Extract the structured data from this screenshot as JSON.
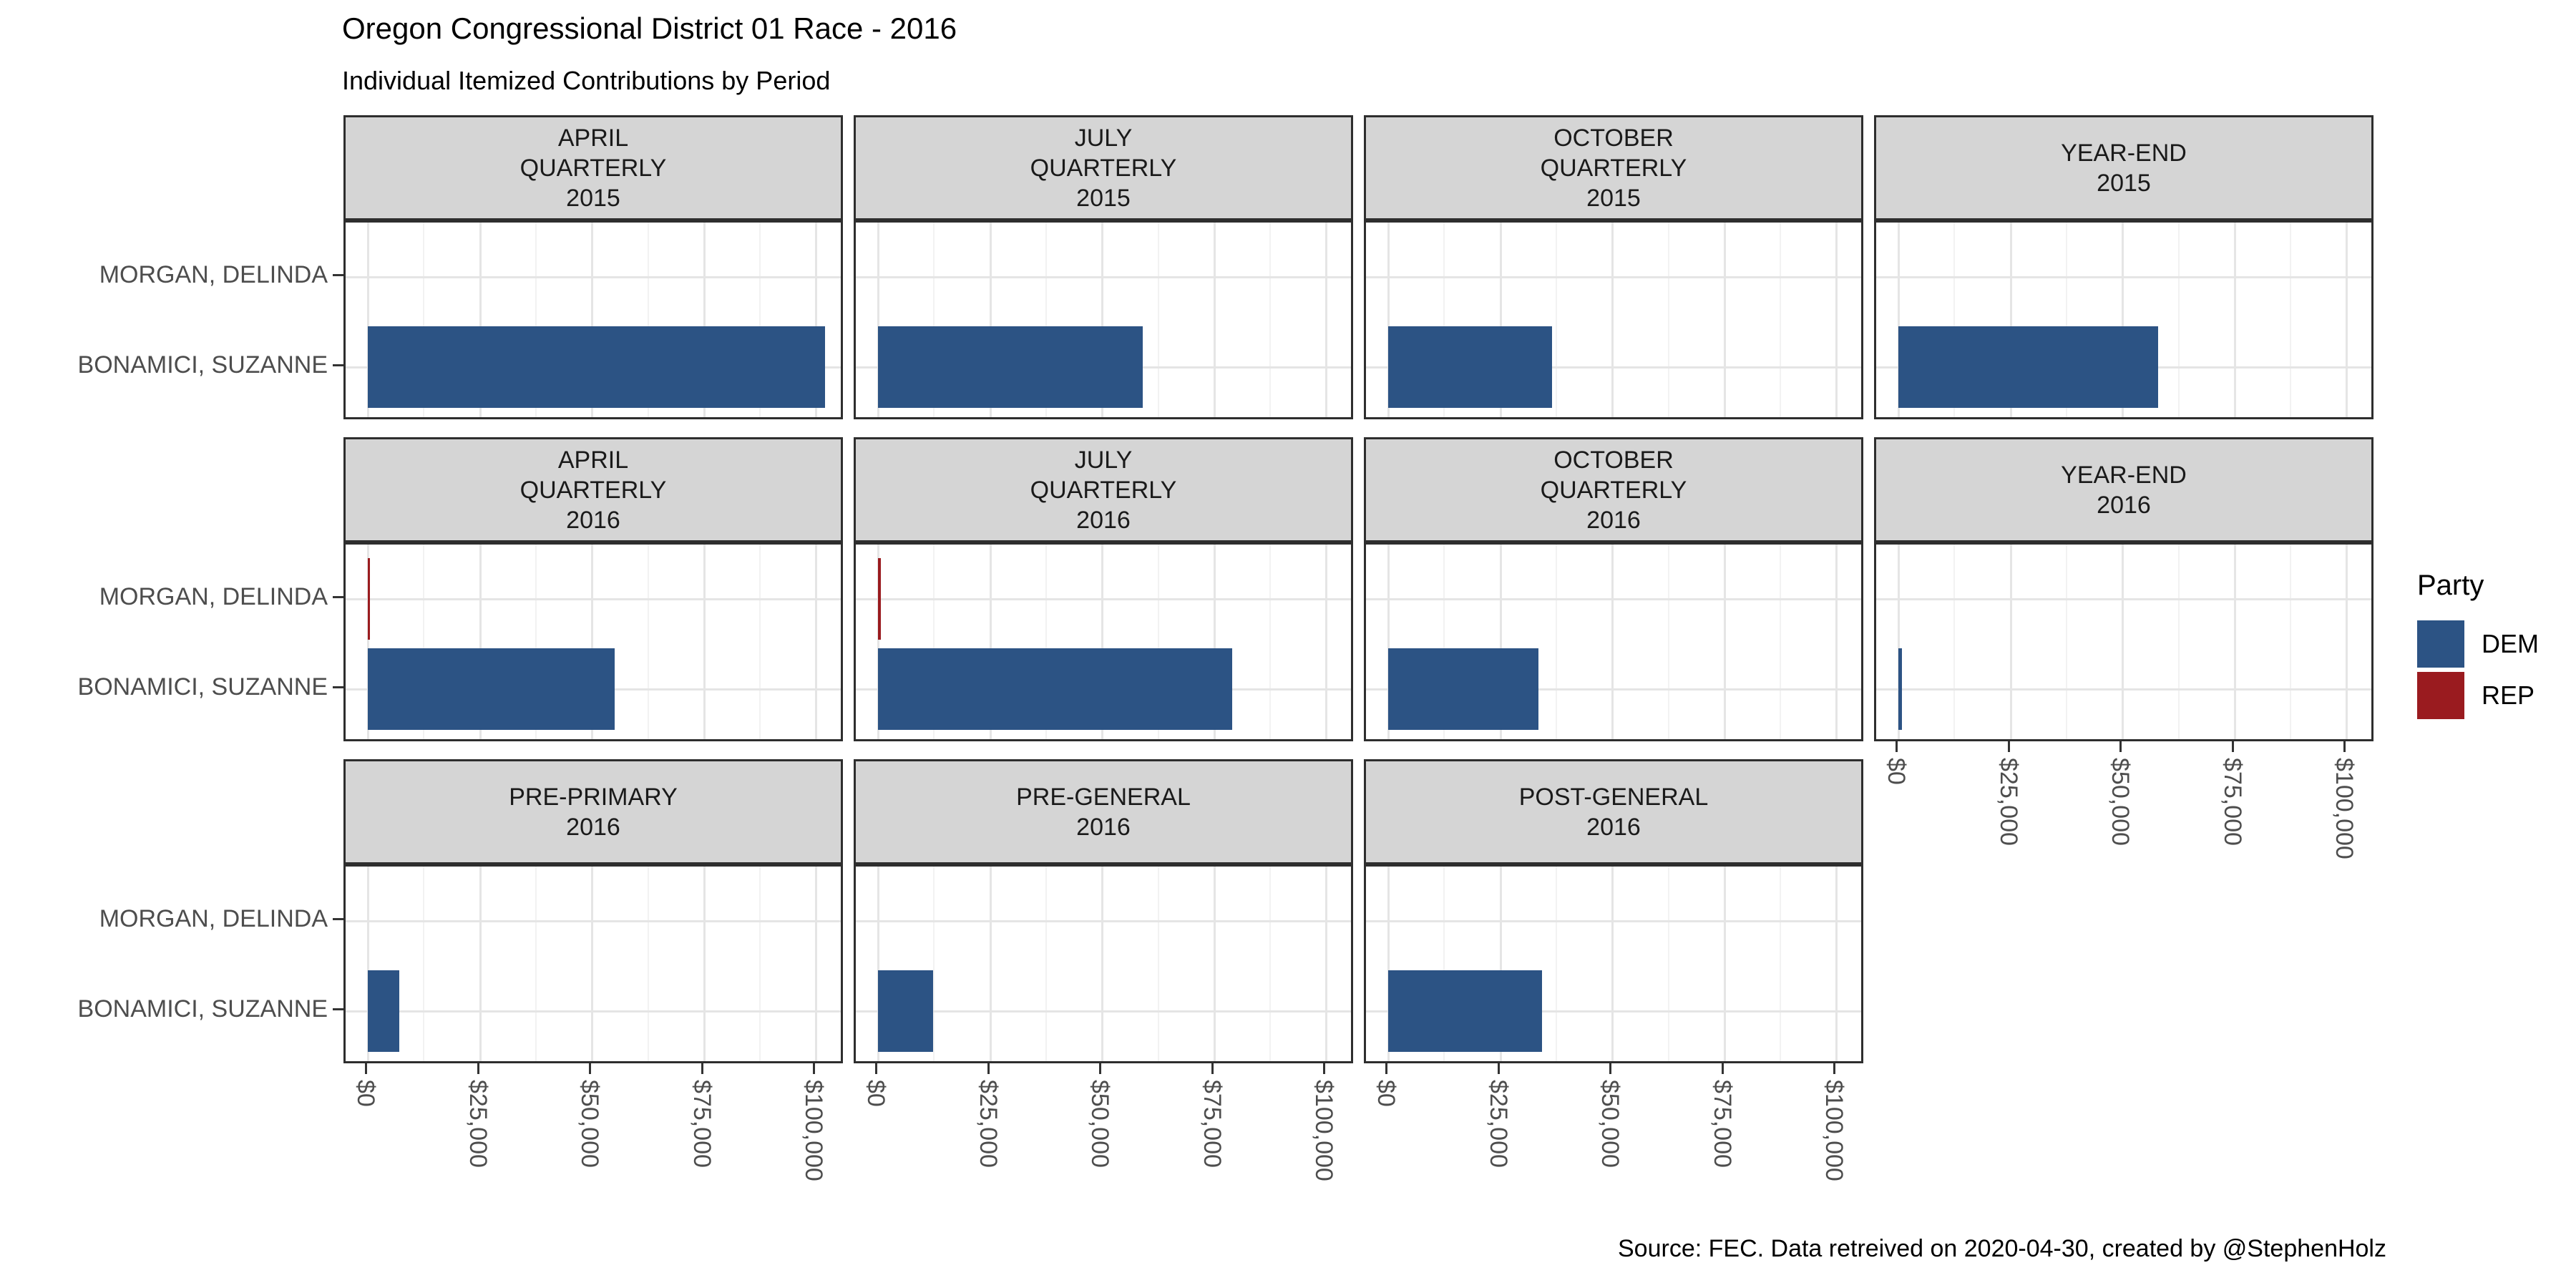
{
  "chart_data": {
    "type": "bar",
    "orientation": "horizontal",
    "title": "Oregon Congressional District 01 Race - 2016",
    "subtitle": "Individual Itemized Contributions by Period",
    "caption": "Source: FEC. Data retreived on 2020-04-30, created by @StephenHolz",
    "categories": [
      "MORGAN, DELINDA",
      "BONAMICI, SUZANNE"
    ],
    "x_axis": {
      "tick_labels": [
        "$0",
        "$25,000",
        "$50,000",
        "$75,000",
        "$100,000"
      ],
      "tick_values": [
        0,
        25000,
        50000,
        75000,
        100000
      ],
      "minor_step": 12500,
      "range_dollars": [
        0,
        100000
      ],
      "grid": "on"
    },
    "legend": {
      "title": "Party",
      "position": "right",
      "entries": [
        {
          "label": "DEM",
          "color": "#2C5384"
        },
        {
          "label": "REP",
          "color": "#9A1B1F"
        }
      ]
    },
    "party_colors": {
      "DEM": "#2C5384",
      "REP": "#9A1B1F"
    },
    "facets": [
      {
        "strip_lines": [
          "APRIL",
          "QUARTERLY",
          "2015"
        ],
        "row": 0,
        "col": 0,
        "axis_x": false,
        "bars": [
          {
            "candidate": "BONAMICI, SUZANNE",
            "party": "DEM",
            "value": 102000
          }
        ]
      },
      {
        "strip_lines": [
          "JULY",
          "QUARTERLY",
          "2015"
        ],
        "row": 0,
        "col": 1,
        "axis_x": false,
        "bars": [
          {
            "candidate": "BONAMICI, SUZANNE",
            "party": "DEM",
            "value": 59000
          }
        ]
      },
      {
        "strip_lines": [
          "OCTOBER",
          "QUARTERLY",
          "2015"
        ],
        "row": 0,
        "col": 2,
        "axis_x": false,
        "bars": [
          {
            "candidate": "BONAMICI, SUZANNE",
            "party": "DEM",
            "value": 36500
          }
        ]
      },
      {
        "strip_lines": [
          "YEAR-END",
          "2015"
        ],
        "row": 0,
        "col": 3,
        "axis_x": false,
        "bars": [
          {
            "candidate": "BONAMICI, SUZANNE",
            "party": "DEM",
            "value": 58000
          }
        ]
      },
      {
        "strip_lines": [
          "APRIL",
          "QUARTERLY",
          "2016"
        ],
        "row": 1,
        "col": 0,
        "axis_x": false,
        "bars": [
          {
            "candidate": "MORGAN, DELINDA",
            "party": "REP",
            "value": 400
          },
          {
            "candidate": "BONAMICI, SUZANNE",
            "party": "DEM",
            "value": 55000
          }
        ]
      },
      {
        "strip_lines": [
          "JULY",
          "QUARTERLY",
          "2016"
        ],
        "row": 1,
        "col": 1,
        "axis_x": false,
        "bars": [
          {
            "candidate": "MORGAN, DELINDA",
            "party": "REP",
            "value": 600
          },
          {
            "candidate": "BONAMICI, SUZANNE",
            "party": "DEM",
            "value": 79000
          }
        ]
      },
      {
        "strip_lines": [
          "OCTOBER",
          "QUARTERLY",
          "2016"
        ],
        "row": 1,
        "col": 2,
        "axis_x": false,
        "bars": [
          {
            "candidate": "BONAMICI, SUZANNE",
            "party": "DEM",
            "value": 33500
          }
        ]
      },
      {
        "strip_lines": [
          "YEAR-END",
          "2016"
        ],
        "row": 1,
        "col": 3,
        "axis_x": true,
        "bars": [
          {
            "candidate": "BONAMICI, SUZANNE",
            "party": "DEM",
            "value": 800
          }
        ]
      },
      {
        "strip_lines": [
          "PRE-PRIMARY",
          "2016"
        ],
        "row": 2,
        "col": 0,
        "axis_x": true,
        "bars": [
          {
            "candidate": "BONAMICI, SUZANNE",
            "party": "DEM",
            "value": 7000
          }
        ]
      },
      {
        "strip_lines": [
          "PRE-GENERAL",
          "2016"
        ],
        "row": 2,
        "col": 1,
        "axis_x": true,
        "bars": [
          {
            "candidate": "BONAMICI, SUZANNE",
            "party": "DEM",
            "value": 12300
          }
        ]
      },
      {
        "strip_lines": [
          "POST-GENERAL",
          "2016"
        ],
        "row": 2,
        "col": 2,
        "axis_x": true,
        "bars": [
          {
            "candidate": "BONAMICI, SUZANNE",
            "party": "DEM",
            "value": 34400
          }
        ]
      }
    ]
  }
}
